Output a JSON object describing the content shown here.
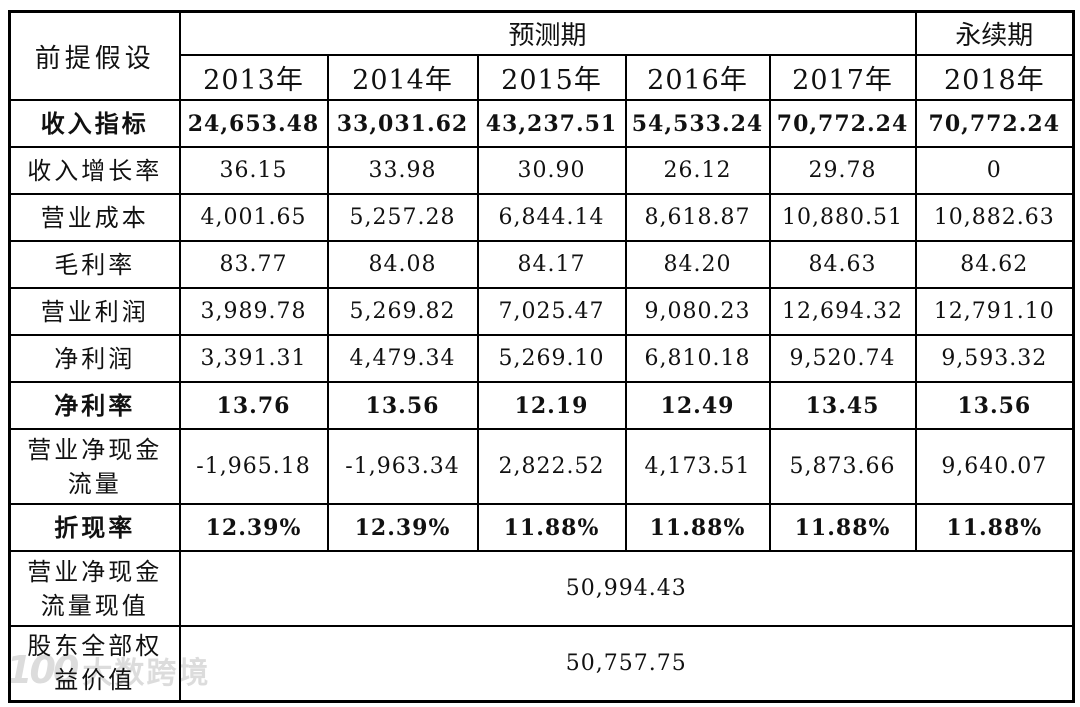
{
  "table": {
    "corner_label": "前提假设",
    "period_group_label": "预测期",
    "terminal_group_label": "永续期",
    "year_headers": [
      "2013年",
      "2014年",
      "2015年",
      "2016年",
      "2017年",
      "2018年"
    ],
    "rows": [
      {
        "label": "收入指标",
        "bold": true,
        "two_line": false,
        "values": [
          "24,653.48",
          "33,031.62",
          "43,237.51",
          "54,533.24",
          "70,772.24",
          "70,772.24"
        ]
      },
      {
        "label": "收入增长率",
        "bold": false,
        "two_line": false,
        "values": [
          "36.15",
          "33.98",
          "30.90",
          "26.12",
          "29.78",
          "0"
        ]
      },
      {
        "label": "营业成本",
        "bold": false,
        "two_line": false,
        "values": [
          "4,001.65",
          "5,257.28",
          "6,844.14",
          "8,618.87",
          "10,880.51",
          "10,882.63"
        ]
      },
      {
        "label": "毛利率",
        "bold": false,
        "two_line": false,
        "values": [
          "83.77",
          "84.08",
          "84.17",
          "84.20",
          "84.63",
          "84.62"
        ]
      },
      {
        "label": "营业利润",
        "bold": false,
        "two_line": false,
        "values": [
          "3,989.78",
          "5,269.82",
          "7,025.47",
          "9,080.23",
          "12,694.32",
          "12,791.10"
        ]
      },
      {
        "label": "净利润",
        "bold": false,
        "two_line": false,
        "values": [
          "3,391.31",
          "4,479.34",
          "5,269.10",
          "6,810.18",
          "9,520.74",
          "9,593.32"
        ]
      },
      {
        "label": "净利率",
        "bold": true,
        "two_line": false,
        "values": [
          "13.76",
          "13.56",
          "12.19",
          "12.49",
          "13.45",
          "13.56"
        ]
      },
      {
        "label": "营业净现金\n流量",
        "bold": false,
        "two_line": true,
        "values": [
          "-1,965.18",
          "-1,963.34",
          "2,822.52",
          "4,173.51",
          "5,873.66",
          "9,640.07"
        ]
      },
      {
        "label": "折现率",
        "bold": true,
        "two_line": false,
        "values": [
          "12.39%",
          "12.39%",
          "11.88%",
          "11.88%",
          "11.88%",
          "11.88%"
        ]
      }
    ],
    "summary_rows": [
      {
        "label": "营业净现金\n流量现值",
        "value": "50,994.43"
      },
      {
        "label": "股东全部权\n益价值",
        "value": "50,757.75"
      }
    ]
  },
  "watermark": {
    "logo_text": "100",
    "brand_text": "大数跨境"
  }
}
